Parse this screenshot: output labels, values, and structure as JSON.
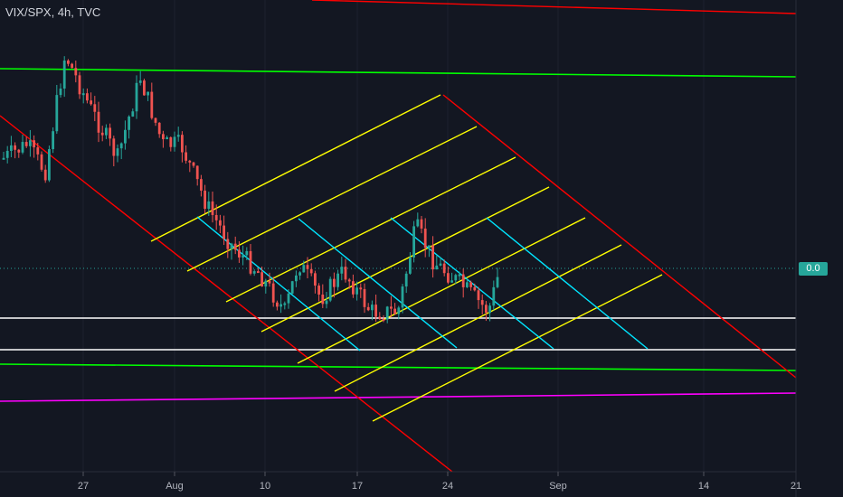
{
  "header": {
    "symbol_label": "VIX/SPX, 4h, TVC"
  },
  "price_axis": {
    "last_value_label": "0.0"
  },
  "colors": {
    "background": "#131722",
    "up": "#26a69a",
    "down": "#ef5350",
    "axis_text": "#b2b5be",
    "red_channel": "#ff0000",
    "yellow_lines": "#ffff00",
    "cyan_lines": "#00e5ff",
    "green_lines": "#00ff00",
    "magenta_line": "#ff00ff",
    "white_lines": "#ffffff"
  },
  "chart_data": {
    "type": "candlestick",
    "xlabel": "",
    "ylabel": "",
    "x_tick_labels": [
      "27",
      "Aug",
      "10",
      "17",
      "24",
      "Sep",
      "14",
      "21"
    ],
    "y_tick_labels": [
      "0.0"
    ],
    "last_value": 0.0,
    "drawings": [
      {
        "kind": "descending-channel",
        "color": "red"
      },
      {
        "kind": "parallel-ascending-lines",
        "color": "yellow",
        "count": 8
      },
      {
        "kind": "parallel-descending-lines",
        "color": "cyan",
        "count": 6
      },
      {
        "kind": "trendline",
        "color": "green",
        "count": 2
      },
      {
        "kind": "trendline",
        "color": "magenta",
        "count": 1
      },
      {
        "kind": "horizontal-line",
        "color": "white",
        "count": 2
      },
      {
        "kind": "horizontal-dotted-line",
        "color": "up",
        "label": "0.0"
      }
    ]
  }
}
